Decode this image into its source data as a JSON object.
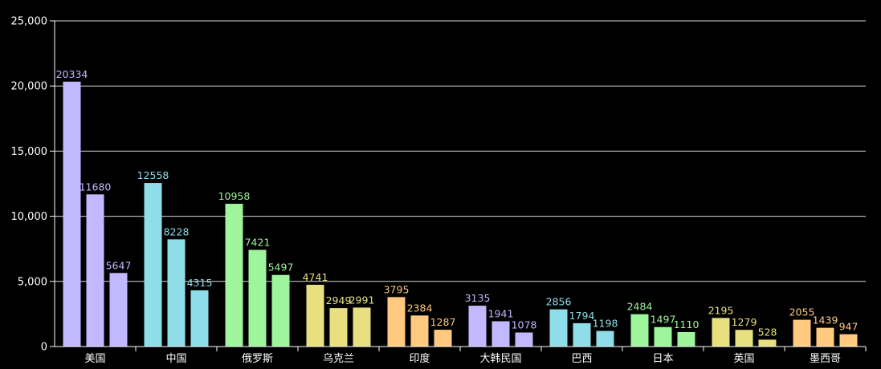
{
  "chart_data": {
    "type": "bar",
    "title": "",
    "xlabel": "",
    "ylabel": "",
    "ylim": [
      0,
      25000
    ],
    "yticks": [
      0,
      5000,
      10000,
      15000,
      20000,
      25000
    ],
    "ytick_labels": [
      "0",
      "5,000",
      "10,000",
      "15,000",
      "20,000",
      "25,000"
    ],
    "grid": true,
    "categories": [
      "美国",
      "中国",
      "俄罗斯",
      "乌克兰",
      "印度",
      "大韩民国",
      "巴西",
      "日本",
      "英国",
      "墨西哥"
    ],
    "series": [
      {
        "values": [
          20334,
          12558,
          10958,
          4741,
          3795,
          3135,
          2856,
          2484,
          2195,
          2055
        ]
      },
      {
        "values": [
          11680,
          8228,
          7421,
          2949,
          2384,
          1941,
          1794,
          1497,
          1279,
          1439
        ]
      },
      {
        "values": [
          5647,
          4315,
          5497,
          2991,
          1287,
          1078,
          1198,
          1110,
          528,
          947
        ]
      }
    ],
    "category_colors": [
      "#c2b8ff",
      "#8fdde8",
      "#9ef59b",
      "#e8e080",
      "#ffc97f",
      "#c2b8ff",
      "#8fdde8",
      "#9ef59b",
      "#e8e080",
      "#ffc97f"
    ],
    "colors": {
      "background": "#000000",
      "axis": "#ffffff",
      "grid": "#ffffff"
    }
  }
}
